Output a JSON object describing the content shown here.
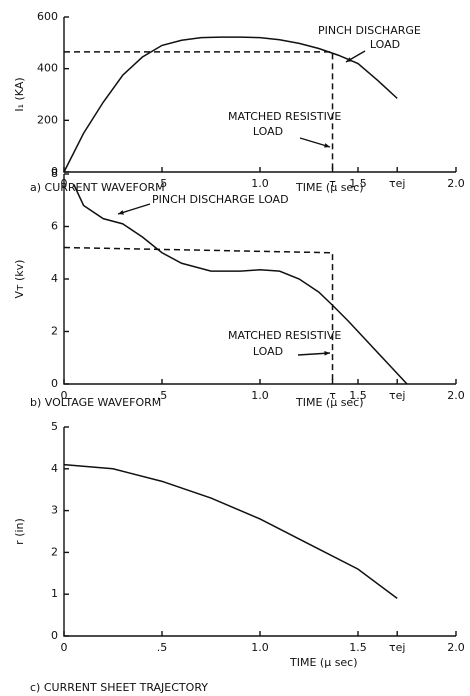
{
  "chart_data": [
    {
      "type": "line",
      "title": "a) CURRENT WAVEFORM",
      "xlabel": "TIME (μ sec)",
      "ylabel": "I₁ (KA)",
      "xlim": [
        0,
        2
      ],
      "ylim": [
        0,
        600
      ],
      "xticks": [
        0,
        {
          "value": 0.5,
          "label": ".5"
        },
        {
          "value": 1,
          "label": "1.0"
        },
        {
          "value": 1.37,
          "label": "τ"
        },
        {
          "value": 1.5,
          "label": "1.5"
        },
        {
          "value": 1.7,
          "label": "τej"
        },
        {
          "value": 2,
          "label": "2.0"
        }
      ],
      "yticks": [
        0,
        200,
        400,
        600
      ],
      "series": [
        {
          "x": [
            0,
            0.1,
            0.2,
            0.3,
            0.4,
            0.5,
            0.6,
            0.7,
            0.8,
            0.9,
            1.0,
            1.1,
            1.2,
            1.3,
            1.4,
            1.5,
            1.6,
            1.7
          ],
          "values": [
            0,
            150,
            270,
            375,
            445,
            490,
            510,
            520,
            522,
            522,
            520,
            512,
            498,
            478,
            452,
            420,
            355,
            285
          ],
          "color": "#111",
          "dash": false
        },
        {
          "x": [
            0,
            1.37,
            1.37
          ],
          "values": [
            465,
            465,
            0
          ],
          "color": "#111",
          "dash": true
        }
      ],
      "annotations": [
        {
          "lines": [
            "PINCH DISCHARGE",
            "LOAD"
          ]
        },
        {
          "lines": [
            "MATCHED RESISTIVE",
            "LOAD"
          ]
        }
      ]
    },
    {
      "type": "line",
      "title": "b) VOLTAGE WAVEFORM",
      "xlabel": "TIME (μ sec)",
      "ylabel": "Vᴛ (kv)",
      "xlim": [
        0,
        2
      ],
      "ylim": [
        0,
        8
      ],
      "xticks": [
        0,
        {
          "value": 0.5,
          "label": ".5"
        },
        {
          "value": 1,
          "label": "1.0"
        },
        {
          "value": 1.37,
          "label": "τ"
        },
        {
          "value": 1.5,
          "label": "1.5"
        },
        {
          "value": 1.7,
          "label": "τej"
        },
        {
          "value": 2,
          "label": "2.0"
        }
      ],
      "yticks": [
        0,
        2,
        4,
        6,
        8
      ],
      "series": [
        {
          "x": [
            0.05,
            0.1,
            0.2,
            0.3,
            0.4,
            0.5,
            0.6,
            0.75,
            0.9,
            1.0,
            1.1,
            1.2,
            1.3,
            1.37,
            1.45,
            1.55,
            1.65,
            1.75
          ],
          "values": [
            7.6,
            6.8,
            6.3,
            6.1,
            5.6,
            5.0,
            4.6,
            4.3,
            4.3,
            4.35,
            4.3,
            4.0,
            3.5,
            3.0,
            2.4,
            1.6,
            0.8,
            0
          ],
          "color": "#111",
          "dash": false
        },
        {
          "x": [
            0,
            1.37,
            1.37
          ],
          "values": [
            5.2,
            5.0,
            0
          ],
          "color": "#111",
          "dash": true
        }
      ],
      "annotations": [
        {
          "lines": [
            "PINCH DISCHARGE LOAD"
          ]
        },
        {
          "lines": [
            "MATCHED RESISTIVE",
            "LOAD"
          ]
        }
      ]
    },
    {
      "type": "line",
      "title": "c) CURRENT SHEET TRAJECTORY",
      "xlabel": "TIME (μ sec)",
      "ylabel": "r (in)",
      "xlim": [
        0,
        2
      ],
      "ylim": [
        0,
        5
      ],
      "xticks": [
        0,
        {
          "value": 0.5,
          "label": ".5"
        },
        {
          "value": 1,
          "label": "1.0"
        },
        {
          "value": 1.5,
          "label": "1.5"
        },
        {
          "value": 1.7,
          "label": "τej"
        },
        {
          "value": 2,
          "label": "2.0"
        }
      ],
      "yticks": [
        0,
        1,
        2,
        3,
        4,
        5
      ],
      "series": [
        {
          "x": [
            0,
            0.25,
            0.5,
            0.75,
            1.0,
            1.25,
            1.5,
            1.7
          ],
          "values": [
            4.1,
            4.0,
            3.7,
            3.3,
            2.8,
            2.2,
            1.6,
            0.9
          ],
          "color": "#111",
          "dash": false
        }
      ],
      "annotations": []
    }
  ]
}
